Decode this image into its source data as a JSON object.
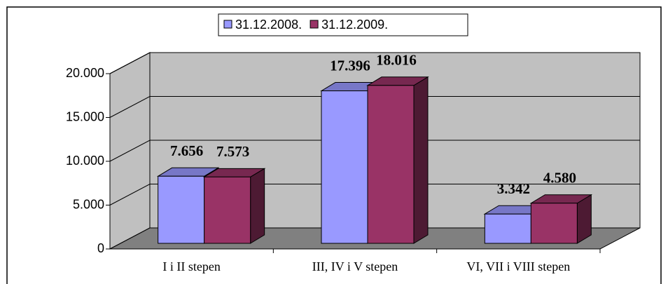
{
  "chart_data": {
    "type": "bar3d",
    "categories": [
      "I i II stepen",
      "III, IV i V stepen",
      "VI, VII i VIII stepen"
    ],
    "series": [
      {
        "name": "31.12.2008.",
        "color": "#9999ff",
        "values": [
          7656,
          17396,
          3342
        ],
        "value_labels": [
          "7.656",
          "17.396",
          "3.342"
        ]
      },
      {
        "name": "31.12.2009.",
        "color": "#993366",
        "values": [
          7573,
          18016,
          4580
        ],
        "value_labels": [
          "7.573",
          "18.016",
          "4.580"
        ]
      }
    ],
    "ylim": [
      0,
      20000
    ],
    "yticks": [
      0,
      {
        "value": 5000,
        "label": "5.000"
      },
      {
        "value": 10000,
        "label": "10.000"
      },
      {
        "value": 15000,
        "label": "15.000"
      },
      {
        "value": 20000,
        "label": "20.000"
      }
    ],
    "grid": true,
    "legend": "top"
  }
}
